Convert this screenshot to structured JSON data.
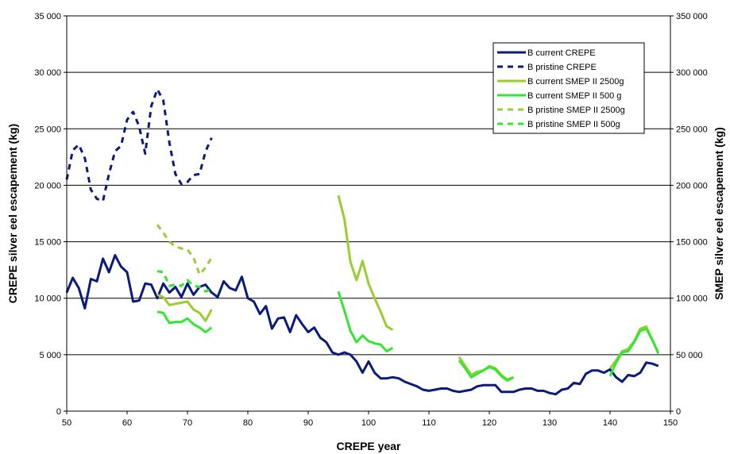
{
  "chart_data": {
    "type": "line",
    "title": "",
    "xlabel": "CREPE year",
    "ylabel": "CREPE silver eel escapement (kg)",
    "y2label": "SMEP silver eel escapement (kg)",
    "xlim": [
      50,
      150
    ],
    "ylim": [
      0,
      35000
    ],
    "y2lim": [
      0,
      350000
    ],
    "x_ticks": [
      "50",
      "60",
      "70",
      "80",
      "90",
      "100",
      "110",
      "120",
      "130",
      "140",
      "150"
    ],
    "y_ticks": [
      "0",
      "5 000",
      "10 000",
      "15 000",
      "20 000",
      "25 000",
      "30 000",
      "35 000"
    ],
    "y2_ticks": [
      "0",
      "50 000",
      "100 000",
      "150 000",
      "200 000",
      "250 000",
      "300 000",
      "350 000"
    ],
    "grid": "horizontal",
    "legend_position": "top-right",
    "series": [
      {
        "name": "B current CREPE",
        "axis": "left",
        "color": "#0B1B7C",
        "dashed": false,
        "x": [
          50,
          51,
          52,
          53,
          54,
          55,
          56,
          57,
          58,
          59,
          60,
          61,
          62,
          63,
          64,
          65,
          66,
          67,
          68,
          69,
          70,
          71,
          72,
          73,
          74,
          75,
          76,
          77,
          78,
          79,
          80,
          81,
          82,
          83,
          84,
          85,
          86,
          87,
          88,
          89,
          90,
          91,
          92,
          93,
          94,
          95,
          96,
          97,
          98,
          99,
          100,
          101,
          102,
          103,
          104,
          105,
          106,
          107,
          108,
          109,
          110,
          111,
          112,
          113,
          114,
          115,
          116,
          117,
          118,
          119,
          120,
          121,
          122,
          123,
          124,
          125,
          126,
          127,
          128,
          129,
          130,
          131,
          132,
          133,
          134,
          135,
          136,
          137,
          138,
          139,
          140,
          141,
          142,
          143,
          144,
          145,
          146,
          147,
          148
        ],
        "values": [
          10500,
          11800,
          10900,
          9100,
          11700,
          11500,
          13500,
          12300,
          13800,
          12800,
          12300,
          9700,
          9800,
          11300,
          11200,
          10000,
          11300,
          10500,
          11000,
          10100,
          11300,
          10300,
          11000,
          11200,
          10500,
          10100,
          11500,
          10900,
          10700,
          11900,
          10000,
          9700,
          8600,
          9300,
          7300,
          8200,
          8300,
          7000,
          8500,
          7700,
          7000,
          7400,
          6500,
          6100,
          5200,
          5000,
          5200,
          5000,
          4400,
          3400,
          4400,
          3400,
          2900,
          2900,
          3000,
          2900,
          2600,
          2400,
          2200,
          1900,
          1800,
          1900,
          2000,
          2000,
          1800,
          1700,
          1800,
          1900,
          2200,
          2300,
          2300,
          2300,
          1700,
          1700,
          1700,
          1900,
          2000,
          2000,
          1800,
          1800,
          1600,
          1500,
          1900,
          2000,
          2500,
          2400,
          3300,
          3600,
          3600,
          3400,
          3700,
          3000,
          2600,
          3200,
          3100,
          3400,
          4300,
          4200,
          4000
        ]
      },
      {
        "name": "B pristine CREPE",
        "axis": "left",
        "color": "#0B1B7C",
        "dashed": true,
        "x": [
          50,
          51,
          52,
          53,
          54,
          55,
          56,
          57,
          58,
          59,
          60,
          61,
          62,
          63,
          64,
          65,
          66,
          67,
          68,
          69,
          70,
          71,
          72,
          73,
          74
        ],
        "values": [
          20500,
          23100,
          23600,
          22400,
          19600,
          18800,
          18600,
          21000,
          23000,
          23500,
          25800,
          26500,
          25200,
          22800,
          27000,
          28500,
          27500,
          23800,
          21000,
          20100,
          20300,
          20900,
          21000,
          23000,
          24200
        ]
      },
      {
        "name": "B current SMEP II 2500g",
        "axis": "right",
        "color": "#9ACD32",
        "dashed": false,
        "segments": [
          {
            "x": [
              65,
              66,
              67,
              68,
              69,
              70,
              71,
              72,
              73,
              74
            ],
            "values": [
              103000,
              101000,
              94000,
              95000,
              96000,
              97000,
              90000,
              87000,
              80000,
              90000
            ]
          },
          {
            "x": [
              95,
              96,
              97,
              98,
              99,
              100,
              101,
              102,
              103,
              104
            ],
            "values": [
              191000,
              170000,
              132000,
              116000,
              133000,
              113000,
              100000,
              88000,
              75000,
              72000
            ]
          },
          {
            "x": [
              115,
              116,
              117,
              118,
              119,
              120,
              121,
              122,
              123,
              124
            ],
            "values": [
              48000,
              40000,
              32000,
              35000,
              36000,
              40000,
              38000,
              32000,
              28000,
              30000
            ]
          },
          {
            "x": [
              140,
              141,
              142,
              143,
              144,
              145,
              146,
              147,
              148
            ],
            "values": [
              38000,
              45000,
              53000,
              55000,
              62000,
              73000,
              75000,
              63000,
              52000
            ]
          }
        ]
      },
      {
        "name": "B current SMEP II 500 g",
        "axis": "right",
        "color": "#33E633",
        "dashed": false,
        "segments": [
          {
            "x": [
              65,
              66,
              67,
              68,
              69,
              70,
              71,
              72,
              73,
              74
            ],
            "values": [
              88000,
              87000,
              78000,
              79000,
              79000,
              82000,
              77000,
              74000,
              70000,
              74000
            ]
          },
          {
            "x": [
              95,
              96,
              97,
              98,
              99,
              100,
              101,
              102,
              103,
              104
            ],
            "values": [
              106000,
              89000,
              71000,
              61000,
              67000,
              62000,
              60000,
              59000,
              53000,
              56000
            ]
          },
          {
            "x": [
              115,
              116,
              117,
              118,
              119,
              120,
              121,
              122,
              123,
              124
            ],
            "values": [
              45000,
              38000,
              30000,
              33000,
              36000,
              39000,
              37000,
              31000,
              27000,
              30000
            ]
          },
          {
            "x": [
              140,
              141,
              142,
              143,
              144,
              145,
              146,
              147,
              148
            ],
            "values": [
              31000,
              43000,
              52000,
              53000,
              61000,
              71000,
              73000,
              63000,
              51000
            ]
          }
        ]
      },
      {
        "name": "B pristine SMEP II 2500g",
        "axis": "right",
        "color": "#9ACD32",
        "dashed": true,
        "x": [
          65,
          66,
          67,
          68,
          69,
          70,
          71,
          72,
          73,
          74
        ],
        "values": [
          165000,
          158000,
          150000,
          146000,
          144000,
          143000,
          136000,
          121000,
          127000,
          136000
        ]
      },
      {
        "name": "B pristine SMEP II 500g",
        "axis": "right",
        "color": "#33E633",
        "dashed": true,
        "x": [
          65,
          66,
          67,
          68,
          69,
          70,
          71,
          72,
          73,
          74
        ],
        "values": [
          124000,
          123000,
          111000,
          112000,
          111000,
          116000,
          111000,
          110000,
          106000,
          108000
        ]
      }
    ]
  }
}
